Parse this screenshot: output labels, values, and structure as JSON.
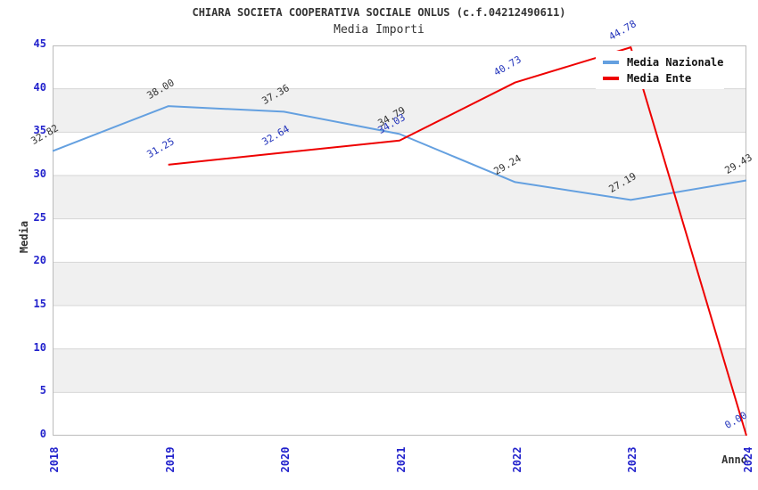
{
  "chart_data": {
    "type": "line",
    "title": "CHIARA SOCIETA COOPERATIVA SOCIALE ONLUS (c.f.04212490611)",
    "subtitle": "Media Importi",
    "xlabel": "Anno",
    "ylabel": "Media",
    "x": [
      2018,
      2019,
      2020,
      2021,
      2022,
      2023,
      2024
    ],
    "ylim": [
      0,
      45
    ],
    "ytick_step": 5,
    "grid": "horizontal",
    "legend_position": "top-right",
    "band_colors": [
      "#ffffff",
      "#f0f0f0"
    ],
    "series": [
      {
        "name": "Media Nazionale",
        "color": "#64a0e0",
        "label_color": "#333333",
        "values": [
          32.82,
          38.0,
          37.36,
          34.79,
          29.24,
          27.19,
          29.43
        ],
        "labels": [
          "32.82",
          "38.00",
          "37.36",
          "34.79",
          "29.24",
          "27.19",
          "29.43"
        ]
      },
      {
        "name": "Media Ente",
        "color": "#ee0000",
        "label_color": "#2233bb",
        "values": [
          null,
          31.25,
          32.64,
          34.03,
          40.73,
          44.78,
          0.0
        ],
        "labels": [
          "",
          "31.25",
          "32.64",
          "34.03",
          "40.73",
          "44.78",
          "0.00"
        ]
      }
    ],
    "colors": {
      "tick_label": "#2222cc",
      "gridline": "#d6d6d6",
      "plot_border": "#bbbbbb",
      "title_text": "#333333"
    }
  }
}
